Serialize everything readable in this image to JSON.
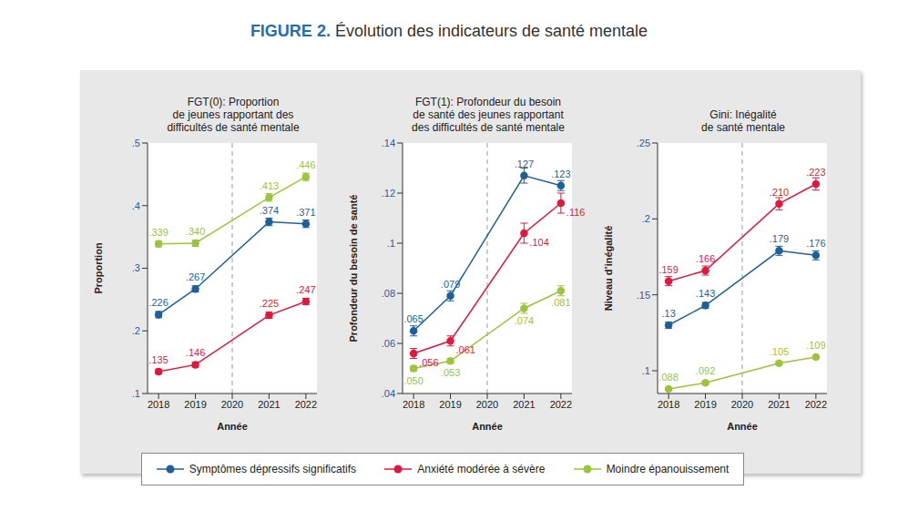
{
  "figure_label": "FIGURE 2.",
  "title": "Évolution des indicateurs de santé mentale",
  "legend": "bottom",
  "chart_data": [
    {
      "type": "line",
      "title": [
        "FGT(0): Proportion",
        "de jeunes rapportant des",
        "difficultés de santé mentale"
      ],
      "x_label": "Année",
      "y_label": "Proportion",
      "x": [
        2018,
        2019,
        2021,
        2022
      ],
      "xlim": [
        2017.7,
        2022.3
      ],
      "xticks": [
        2018,
        2019,
        2020,
        2021,
        2022
      ],
      "ylim": [
        0.1,
        0.5
      ],
      "yticks": [
        {
          "value": 0.1,
          "label": ".1"
        },
        {
          "value": 0.2,
          "label": ".2"
        },
        {
          "value": 0.3,
          "label": ".3"
        },
        {
          "value": 0.4,
          "label": ".4"
        },
        {
          "value": 0.5,
          "label": ".5"
        }
      ],
      "vline": 2020,
      "grid": false,
      "data_labels": true,
      "marker": "circle",
      "series": [
        {
          "name": "Symptômes dépressifs significatifs",
          "color": "#1f5f99",
          "values": [
            0.226,
            0.267,
            0.374,
            0.371
          ],
          "value_labels": [
            ".226",
            ".267",
            ".374",
            ".371"
          ],
          "errors": [
            0.005,
            0.005,
            0.006,
            0.006
          ]
        },
        {
          "name": "Anxiété modérée à sévère",
          "color": "#e3173e",
          "values": [
            0.135,
            0.146,
            0.225,
            0.247
          ],
          "value_labels": [
            ".135",
            ".146",
            ".225",
            ".247"
          ],
          "errors": [
            0.004,
            0.004,
            0.005,
            0.005
          ]
        },
        {
          "name": "Moindre épanouissement",
          "color": "#9cc43c",
          "values": [
            0.339,
            0.34,
            0.413,
            0.446
          ],
          "value_labels": [
            ".339",
            ".340",
            ".413",
            ".446"
          ],
          "errors": [
            0.005,
            0.005,
            0.006,
            0.006
          ]
        }
      ]
    },
    {
      "type": "line",
      "title": [
        "FGT(1): Profondeur du besoin",
        "de santé des jeunes rapportant",
        "des difficultés de santé mentale"
      ],
      "x_label": "Année",
      "y_label": "Profondeur du besoin de santé",
      "x": [
        2018,
        2019,
        2021,
        2022
      ],
      "xlim": [
        2017.7,
        2022.3
      ],
      "xticks": [
        2018,
        2019,
        2020,
        2021,
        2022
      ],
      "ylim": [
        0.04,
        0.14
      ],
      "yticks": [
        {
          "value": 0.04,
          "label": ".04"
        },
        {
          "value": 0.06,
          "label": ".06"
        },
        {
          "value": 0.08,
          "label": ".08"
        },
        {
          "value": 0.1,
          "label": ".1"
        },
        {
          "value": 0.12,
          "label": ".12"
        },
        {
          "value": 0.14,
          "label": ".14"
        }
      ],
      "vline": 2020,
      "grid": false,
      "data_labels": true,
      "marker": "circle",
      "series": [
        {
          "name": "Symptômes dépressifs significatifs",
          "color": "#1f5f99",
          "values": [
            0.065,
            0.079,
            0.127,
            0.123
          ],
          "value_labels": [
            ".065",
            ".079",
            ".127",
            ".123"
          ],
          "errors": [
            0.002,
            0.002,
            0.003,
            0.002
          ]
        },
        {
          "name": "Anxiété modérée à sévère",
          "color": "#e3173e",
          "values": [
            0.056,
            0.061,
            0.104,
            0.116
          ],
          "value_labels": [
            ".056",
            ".061",
            ".104",
            ".116"
          ],
          "errors": [
            0.002,
            0.002,
            0.004,
            0.004
          ]
        },
        {
          "name": "Moindre épanouissement",
          "color": "#9cc43c",
          "values": [
            0.05,
            0.053,
            0.074,
            0.081
          ],
          "value_labels": [
            ".050",
            ".053",
            ".074",
            ".081"
          ],
          "errors": [
            0.001,
            0.001,
            0.002,
            0.002
          ]
        }
      ]
    },
    {
      "type": "line",
      "title": [
        "Gini: Inégalité",
        "de santé mentale"
      ],
      "x_label": "Année",
      "y_label": "Niveau d’inégalité",
      "x": [
        2018,
        2019,
        2021,
        2022
      ],
      "xlim": [
        2017.7,
        2022.3
      ],
      "xticks": [
        2018,
        2019,
        2020,
        2021,
        2022
      ],
      "ylim": [
        0.085,
        0.25
      ],
      "yticks": [
        {
          "value": 0.1,
          "label": ".1"
        },
        {
          "value": 0.15,
          "label": ".15"
        },
        {
          "value": 0.2,
          "label": ".2"
        },
        {
          "value": 0.25,
          "label": ".25"
        }
      ],
      "vline": 2020,
      "grid": false,
      "data_labels": true,
      "marker": "circle",
      "series": [
        {
          "name": "Symptômes dépressifs significatifs",
          "color": "#1f5f99",
          "values": [
            0.13,
            0.143,
            0.179,
            0.176
          ],
          "value_labels": [
            ".13",
            ".143",
            ".179",
            ".176"
          ],
          "errors": [
            0.002,
            0.002,
            0.003,
            0.003
          ]
        },
        {
          "name": "Anxiété modérée à sévère",
          "color": "#e3173e",
          "values": [
            0.159,
            0.166,
            0.21,
            0.223
          ],
          "value_labels": [
            ".159",
            ".166",
            ".210",
            ".223"
          ],
          "errors": [
            0.003,
            0.003,
            0.004,
            0.004
          ]
        },
        {
          "name": "Moindre épanouissement",
          "color": "#9cc43c",
          "values": [
            0.088,
            0.092,
            0.105,
            0.109
          ],
          "value_labels": [
            ".088",
            ".092",
            ".105",
            ".109"
          ],
          "errors": [
            0.001,
            0.001,
            0.001,
            0.001
          ]
        }
      ]
    }
  ]
}
